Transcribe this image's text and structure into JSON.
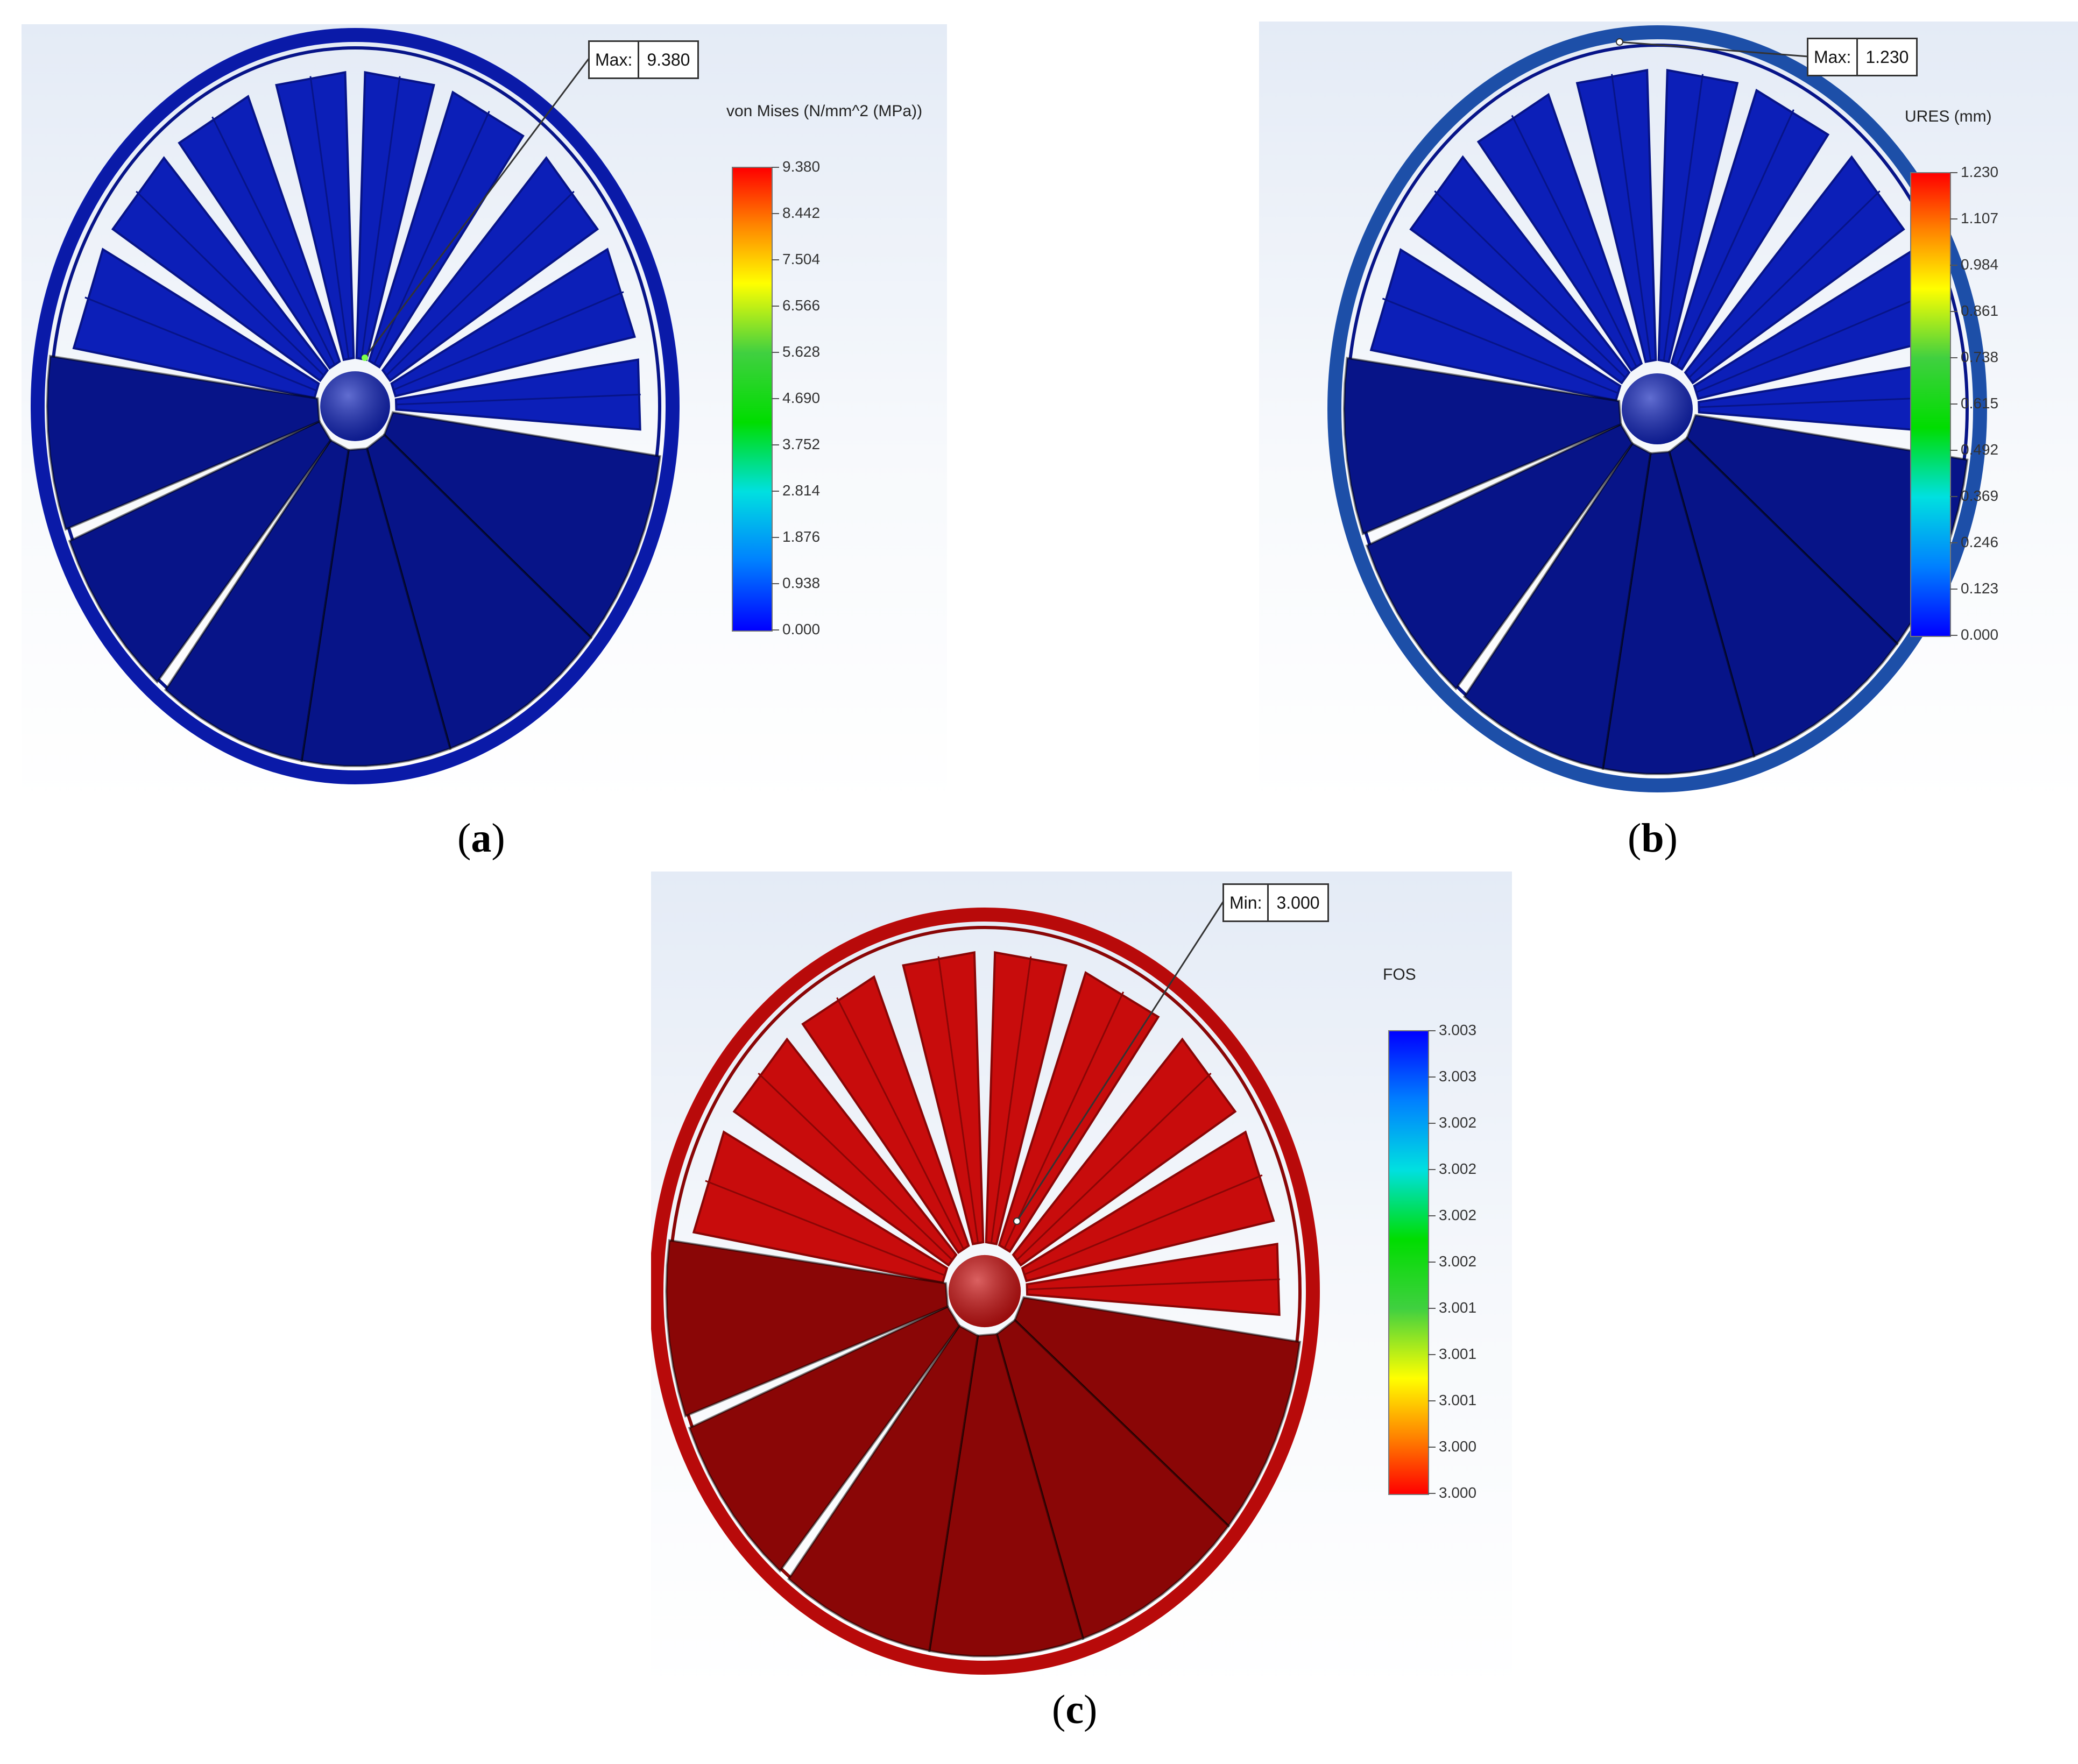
{
  "panels": [
    {
      "id": "a",
      "caption_letter": "a",
      "callout": {
        "key": "Max:",
        "value": "9.380"
      },
      "legend": {
        "title": "von Mises (N/mm^2 (MPa))",
        "ticks": [
          "9.380",
          "8.442",
          "7.504",
          "6.566",
          "5.628",
          "4.690",
          "3.752",
          "2.814",
          "1.876",
          "0.938",
          "0.000"
        ]
      },
      "colors": {
        "body": "#0c1fb8",
        "dark": "#071488",
        "rim": "#0a1aa8"
      }
    },
    {
      "id": "b",
      "caption_letter": "b",
      "callout": {
        "key": "Max:",
        "value": "1.230"
      },
      "legend": {
        "title": "URES (mm)",
        "ticks": [
          "1.230",
          "1.107",
          "0.984",
          "0.861",
          "0.738",
          "0.615",
          "0.492",
          "0.369",
          "0.246",
          "0.123",
          "0.000"
        ]
      },
      "colors": {
        "body": "#0c1fb8",
        "dark": "#071488",
        "rim": "#1d4fa8"
      }
    },
    {
      "id": "c",
      "caption_letter": "c",
      "callout": {
        "key": "Min:",
        "value": "3.000"
      },
      "legend": {
        "title": "FOS",
        "ticks": [
          "3.003",
          "3.003",
          "3.002",
          "3.002",
          "3.002",
          "3.002",
          "3.001",
          "3.001",
          "3.001",
          "3.000",
          "3.000"
        ]
      },
      "colors": {
        "body": "#c80c0c",
        "dark": "#8a0606",
        "rim": "#b80a0a"
      }
    }
  ]
}
